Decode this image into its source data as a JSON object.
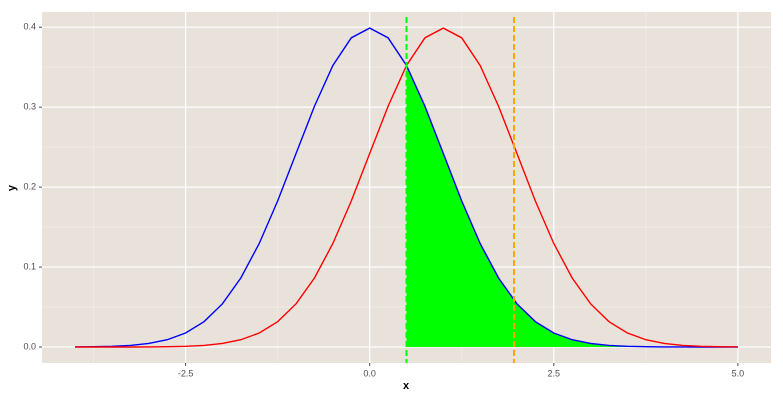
{
  "chart_data": {
    "type": "line",
    "x_label": "x",
    "y_label": "y",
    "x": [
      -4,
      -3.75,
      -3.5,
      -3.25,
      -3,
      -2.75,
      -2.5,
      -2.25,
      -2,
      -1.75,
      -1.5,
      -1.25,
      -1,
      -0.75,
      -0.5,
      -0.25,
      0,
      0.25,
      0.5,
      0.75,
      1,
      1.25,
      1.5,
      1.75,
      2,
      2.25,
      2.5,
      2.75,
      3,
      3.25,
      3.5,
      3.75,
      4,
      4.25,
      4.5,
      4.75,
      5
    ],
    "series": [
      {
        "color": "#0000ff",
        "values": [
          0.0001,
          0.0004,
          0.0009,
          0.002,
          0.0044,
          0.0091,
          0.0175,
          0.0317,
          0.054,
          0.0863,
          0.1295,
          0.1826,
          0.242,
          0.3011,
          0.3521,
          0.3867,
          0.3989,
          0.3867,
          0.3521,
          0.3011,
          0.242,
          0.1826,
          0.1295,
          0.0863,
          0.054,
          0.0317,
          0.0175,
          0.0091,
          0.0044,
          0.002,
          0.0009,
          0.0004,
          0.0001,
          0.0001,
          0,
          0,
          0
        ]
      },
      {
        "color": "#ff0000",
        "values": [
          0,
          0,
          0,
          0,
          0.0001,
          0.0004,
          0.0009,
          0.002,
          0.0044,
          0.0091,
          0.0175,
          0.0317,
          0.054,
          0.0863,
          0.1295,
          0.1826,
          0.242,
          0.3011,
          0.3521,
          0.3867,
          0.3989,
          0.3867,
          0.3521,
          0.3011,
          0.242,
          0.1826,
          0.1295,
          0.0863,
          0.054,
          0.0317,
          0.0175,
          0.0091,
          0.0044,
          0.002,
          0.0009,
          0.0004,
          0.0001
        ]
      }
    ],
    "shade": {
      "series": 0,
      "from": 0.5,
      "color": "#00ff00"
    },
    "vlines": [
      {
        "x": 0.5,
        "color": "#00ff00"
      },
      {
        "x": 1.96,
        "color": "#ffa500"
      }
    ],
    "xlim": [
      -4.45,
      5.45
    ],
    "ylim": [
      -0.02,
      0.419
    ],
    "xticks": [
      {
        "value": -2.5,
        "label": "-2.5"
      },
      {
        "value": 0,
        "label": "0.0"
      },
      {
        "value": 2.5,
        "label": "2.5"
      },
      {
        "value": 5,
        "label": "5.0"
      }
    ],
    "yticks": [
      {
        "value": 0,
        "label": "0.0"
      },
      0.1,
      0.2,
      0.3,
      0.4
    ],
    "xminor": [
      -3.75,
      -1.25,
      1.25,
      3.75
    ],
    "yminor": [
      0.05,
      0.15,
      0.25,
      0.35
    ],
    "grid": true
  }
}
